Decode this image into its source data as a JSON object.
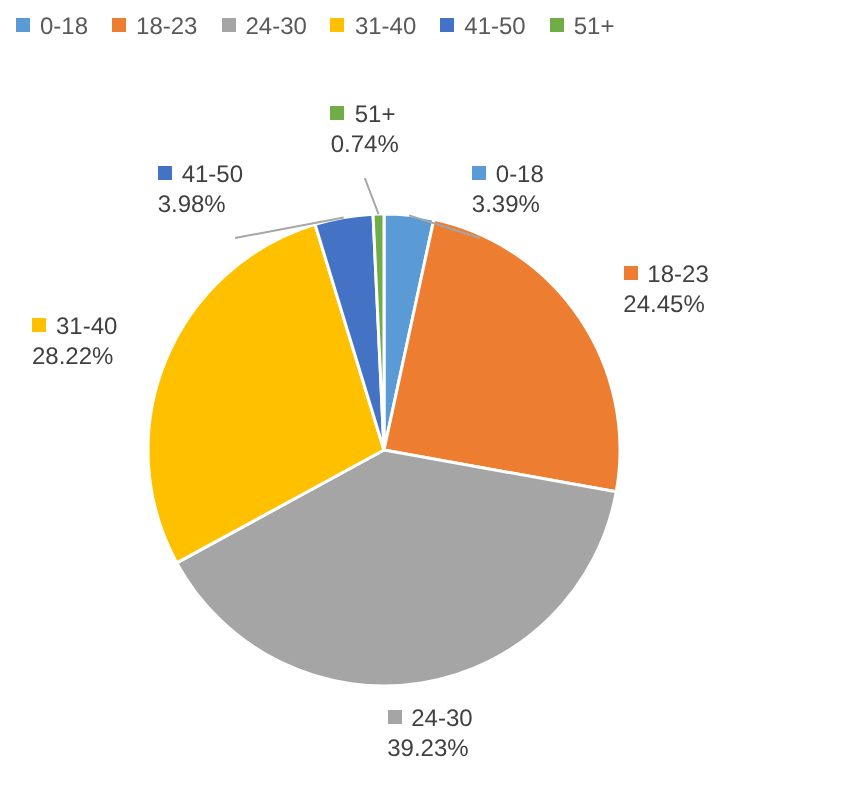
{
  "chart_data": {
    "type": "pie",
    "categories": [
      "0-18",
      "18-23",
      "24-30",
      "31-40",
      "41-50",
      "51+"
    ],
    "values": [
      3.39,
      24.45,
      39.23,
      28.22,
      3.98,
      0.74
    ],
    "value_labels": [
      "3.39%",
      "24.45%",
      "39.23%",
      "28.22%",
      "3.98%",
      "0.74%"
    ],
    "colors": [
      "#5b9bd5",
      "#ed7d31",
      "#a5a5a5",
      "#ffc000",
      "#4472c4",
      "#70ad47"
    ],
    "legend": "top"
  }
}
